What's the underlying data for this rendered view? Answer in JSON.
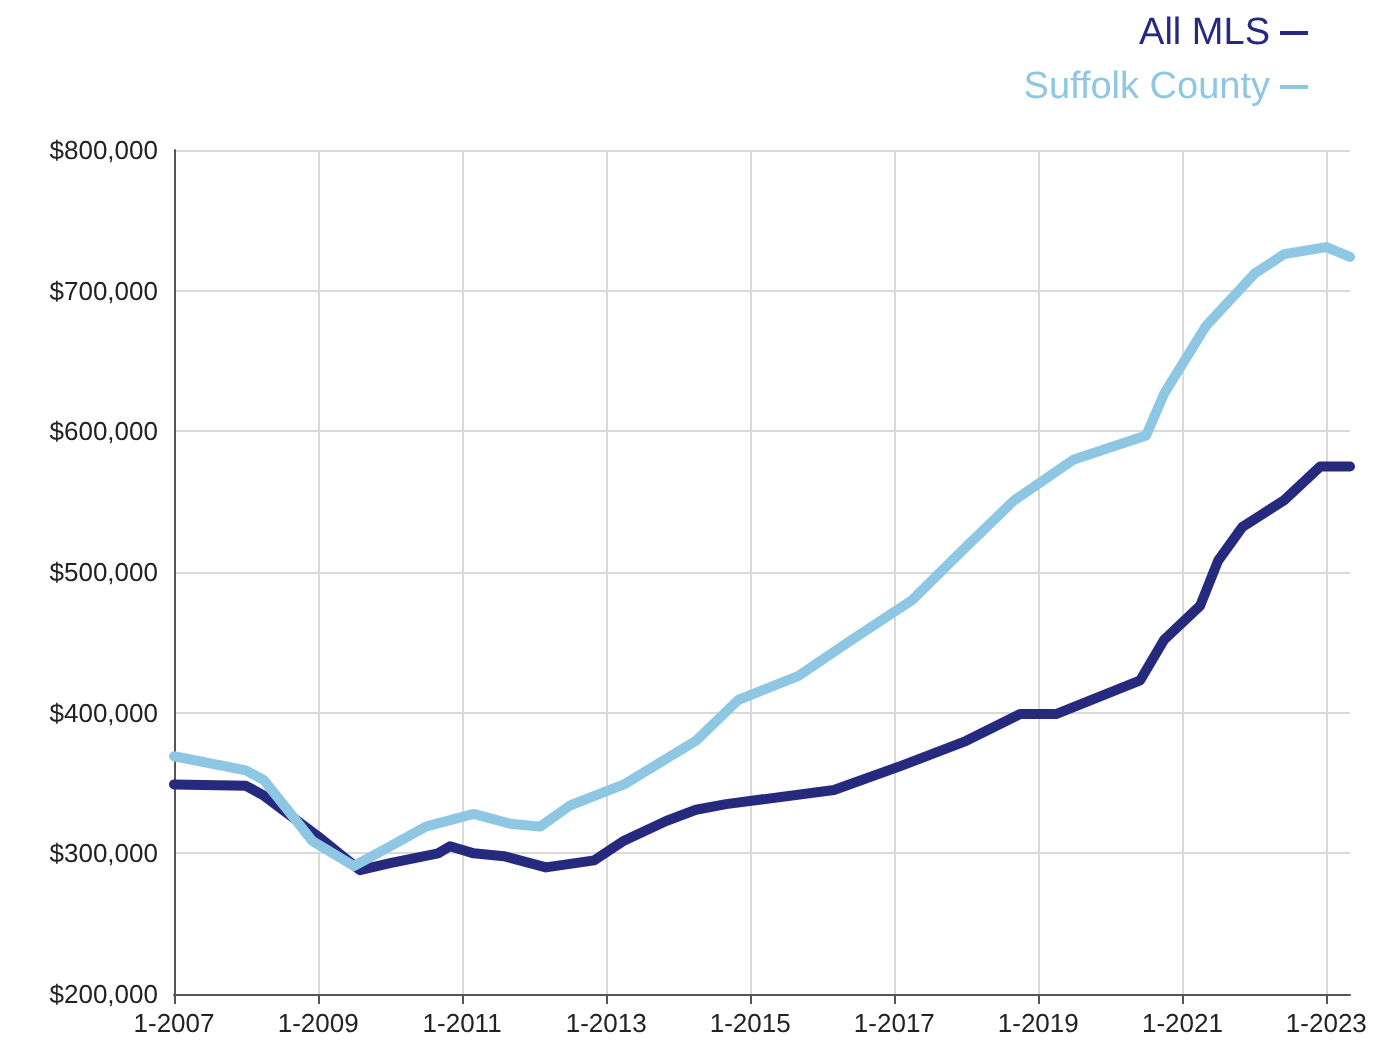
{
  "chart_data": {
    "type": "line",
    "xlim": [
      "2007-01",
      "2023-05"
    ],
    "xticks": [
      {
        "value": "2007-01",
        "label": "1-2007"
      },
      {
        "value": "2009-01",
        "label": "1-2009"
      },
      {
        "value": "2011-01",
        "label": "1-2011"
      },
      {
        "value": "2013-01",
        "label": "1-2013"
      },
      {
        "value": "2015-01",
        "label": "1-2015"
      },
      {
        "value": "2017-01",
        "label": "1-2017"
      },
      {
        "value": "2019-01",
        "label": "1-2019"
      },
      {
        "value": "2021-01",
        "label": "1-2021"
      },
      {
        "value": "2023-01",
        "label": "1-2023"
      }
    ],
    "ylim": [
      200000,
      800000
    ],
    "yticks": [
      {
        "value": 200000,
        "label": "$200,000"
      },
      {
        "value": 300000,
        "label": "$300,000"
      },
      {
        "value": 400000,
        "label": "$400,000"
      },
      {
        "value": 500000,
        "label": "$500,000"
      },
      {
        "value": 600000,
        "label": "$600,000"
      },
      {
        "value": 700000,
        "label": "$700,000"
      },
      {
        "value": 800000,
        "label": "$800,000"
      }
    ],
    "grid": true,
    "legend": "top right",
    "marker": "none",
    "line_style": "solid",
    "series": [
      {
        "name": "All MLS",
        "color": "#262a7f",
        "x": [
          "2007-01",
          "2008-01",
          "2008-04",
          "2009-01",
          "2009-08",
          "2010-01",
          "2010-09",
          "2010-11",
          "2011-03",
          "2011-08",
          "2012-03",
          "2012-11",
          "2013-04",
          "2013-11",
          "2014-04",
          "2014-09",
          "2016-03",
          "2017-02",
          "2018-01",
          "2018-10",
          "2019-04",
          "2020-06",
          "2020-10",
          "2021-04",
          "2021-07",
          "2021-11",
          "2022-06",
          "2022-12",
          "2023-05"
        ],
        "values": [
          349000,
          348000,
          341000,
          312000,
          288000,
          293000,
          300000,
          305000,
          300000,
          298000,
          290000,
          295000,
          309000,
          323000,
          331000,
          335000,
          345000,
          362000,
          380000,
          399000,
          399000,
          423000,
          452000,
          476000,
          508000,
          532000,
          551000,
          575000,
          575000
        ]
      },
      {
        "name": "Suffolk County",
        "color": "#8ec7e4",
        "x": [
          "2007-01",
          "2008-01",
          "2008-04",
          "2008-12",
          "2009-07",
          "2010-01",
          "2010-07",
          "2011-03",
          "2011-09",
          "2012-02",
          "2012-07",
          "2013-04",
          "2014-04",
          "2014-11",
          "2015-09",
          "2016-06",
          "2017-04",
          "2018-01",
          "2018-09",
          "2019-07",
          "2020-07",
          "2020-10",
          "2021-05",
          "2022-01",
          "2022-06",
          "2023-01",
          "2023-05"
        ],
        "values": [
          369000,
          359000,
          352000,
          309000,
          291000,
          305000,
          319000,
          328000,
          321000,
          319000,
          334000,
          349000,
          380000,
          409000,
          426000,
          452000,
          480000,
          518000,
          551000,
          580000,
          597000,
          627000,
          675000,
          712000,
          726000,
          731000,
          724000
        ]
      }
    ]
  }
}
